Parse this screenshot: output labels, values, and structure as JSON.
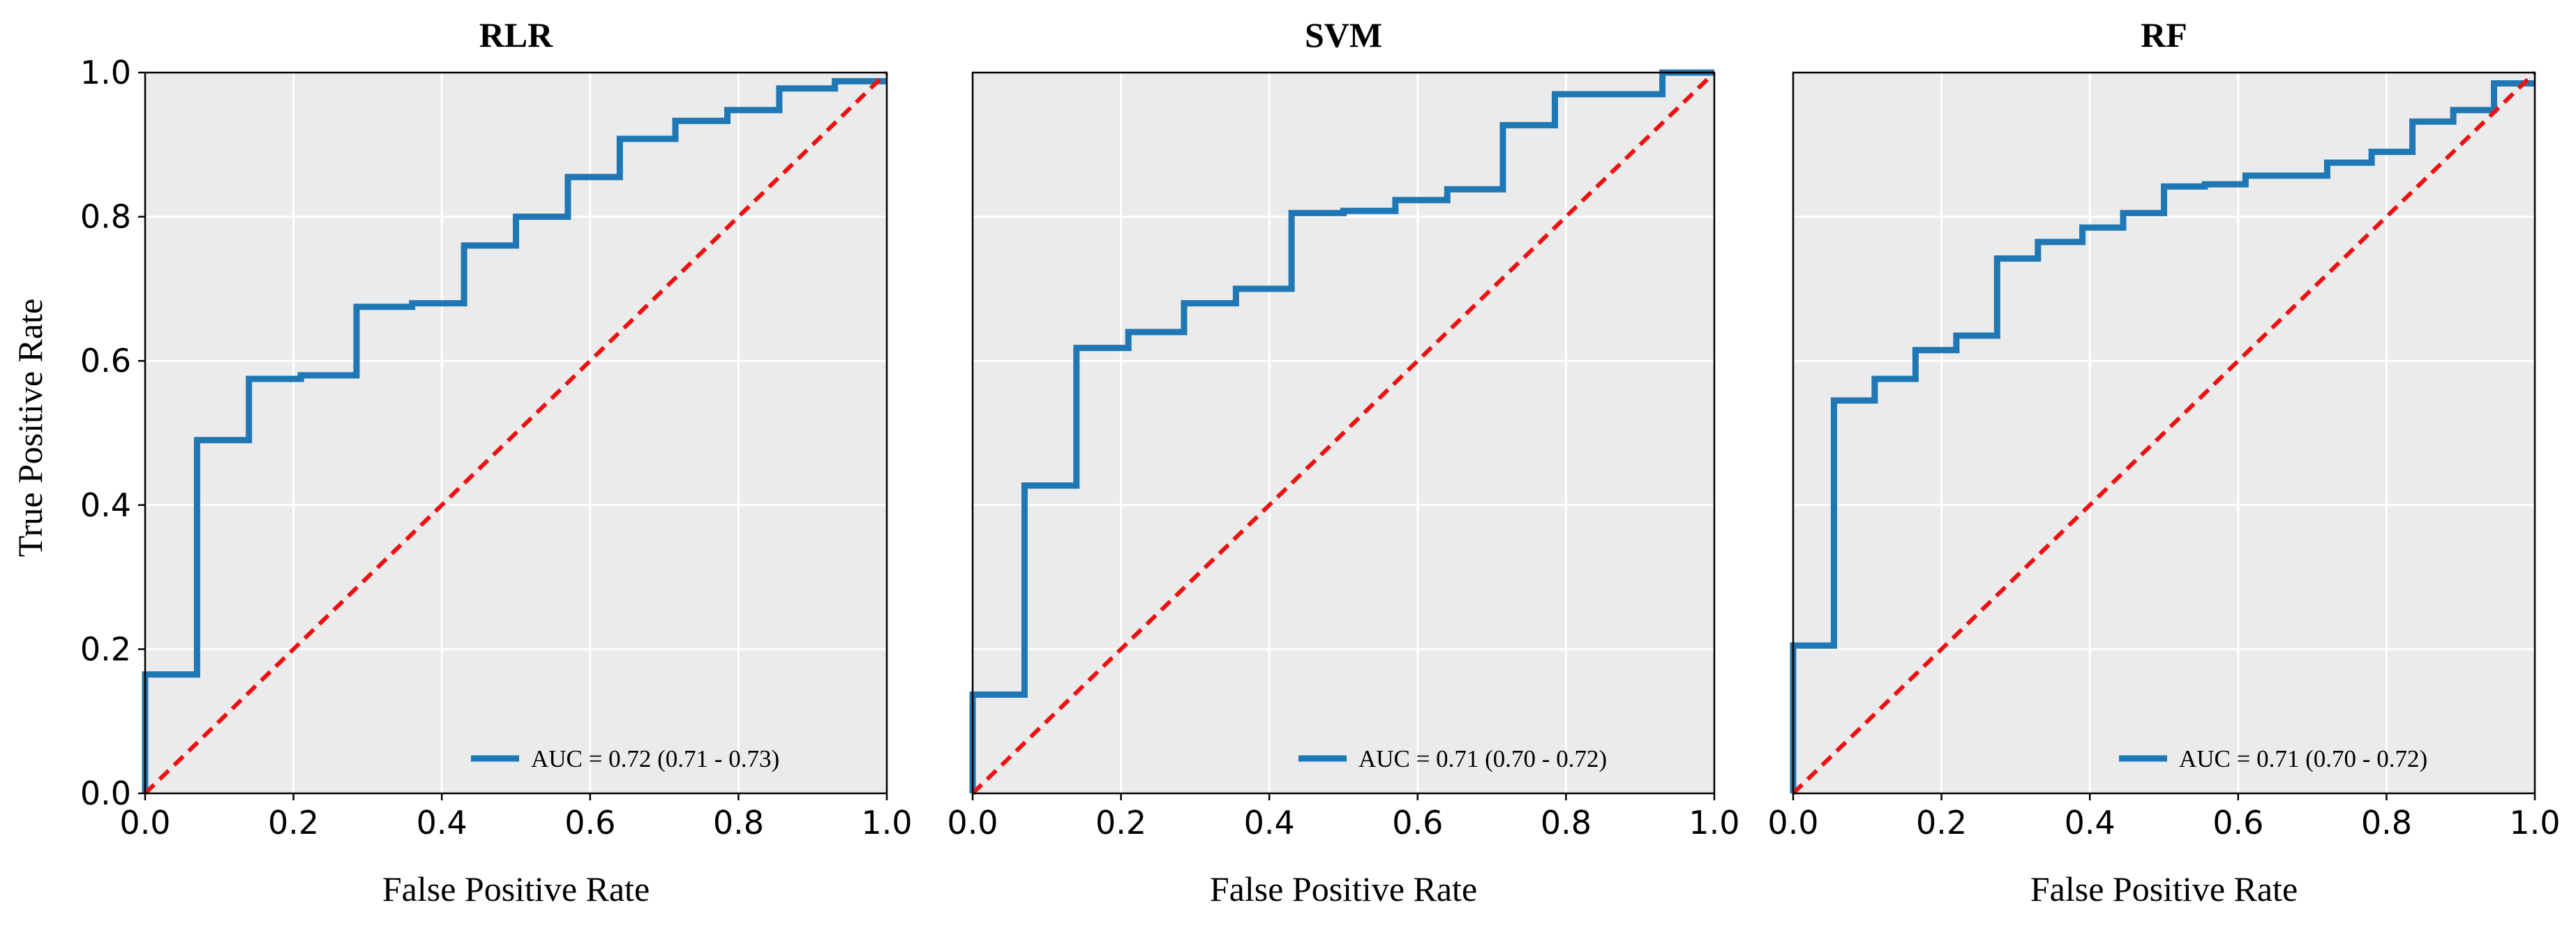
{
  "ylabel": "True Positive Rate",
  "chart_data": [
    {
      "type": "line",
      "title": "RLR",
      "xlabel": "False Positive Rate",
      "ylabel": "True Positive Rate",
      "xlim": [
        0.0,
        1.0
      ],
      "ylim": [
        0.0,
        1.0
      ],
      "xticks": [
        "0.0",
        "0.2",
        "0.4",
        "0.6",
        "0.8",
        "1.0"
      ],
      "yticks": [
        "0.0",
        "0.2",
        "0.4",
        "0.6",
        "0.8",
        "1.0"
      ],
      "grid": true,
      "legend_position": "lower-right",
      "series": [
        {
          "name": "AUC = 0.72 (0.71 - 0.73)",
          "color": "#1f77b4",
          "x": [
            0.0,
            0.0,
            0.07,
            0.07,
            0.14,
            0.14,
            0.21,
            0.21,
            0.285,
            0.285,
            0.36,
            0.36,
            0.43,
            0.43,
            0.5,
            0.5,
            0.57,
            0.57,
            0.64,
            0.64,
            0.715,
            0.715,
            0.785,
            0.785,
            0.855,
            0.855,
            0.93,
            0.93,
            1.0
          ],
          "y": [
            0.0,
            0.165,
            0.165,
            0.49,
            0.49,
            0.575,
            0.575,
            0.58,
            0.58,
            0.675,
            0.675,
            0.68,
            0.68,
            0.76,
            0.76,
            0.8,
            0.8,
            0.855,
            0.855,
            0.908,
            0.908,
            0.933,
            0.933,
            0.948,
            0.948,
            0.978,
            0.978,
            0.988,
            0.988
          ]
        },
        {
          "name": "",
          "color": "#ee1111",
          "style": "dashed",
          "x": [
            0.0,
            1.0
          ],
          "y": [
            0.0,
            1.0
          ]
        }
      ]
    },
    {
      "type": "line",
      "title": "SVM",
      "xlabel": "False Positive Rate",
      "xlim": [
        0.0,
        1.0
      ],
      "ylim": [
        0.0,
        1.0
      ],
      "xticks": [
        "0.0",
        "0.2",
        "0.4",
        "0.6",
        "0.8",
        "1.0"
      ],
      "grid": true,
      "legend_position": "lower-right",
      "series": [
        {
          "name": "AUC = 0.71 (0.70 - 0.72)",
          "color": "#1f77b4",
          "x": [
            0.0,
            0.0,
            0.07,
            0.07,
            0.14,
            0.14,
            0.21,
            0.21,
            0.285,
            0.285,
            0.355,
            0.355,
            0.43,
            0.43,
            0.5,
            0.5,
            0.57,
            0.57,
            0.64,
            0.64,
            0.715,
            0.715,
            0.785,
            0.785,
            0.93,
            0.93,
            1.0
          ],
          "y": [
            0.0,
            0.137,
            0.137,
            0.427,
            0.427,
            0.618,
            0.618,
            0.64,
            0.64,
            0.68,
            0.68,
            0.7,
            0.7,
            0.805,
            0.805,
            0.808,
            0.808,
            0.823,
            0.823,
            0.838,
            0.838,
            0.927,
            0.927,
            0.97,
            0.97,
            1.0,
            1.0
          ]
        },
        {
          "name": "",
          "color": "#ee1111",
          "style": "dashed",
          "x": [
            0.0,
            1.0
          ],
          "y": [
            0.0,
            1.0
          ]
        }
      ]
    },
    {
      "type": "line",
      "title": "RF",
      "xlabel": "False Positive Rate",
      "xlim": [
        0.0,
        1.0
      ],
      "ylim": [
        0.0,
        1.0
      ],
      "xticks": [
        "0.0",
        "0.2",
        "0.4",
        "0.6",
        "0.8",
        "1.0"
      ],
      "grid": true,
      "legend_position": "lower-right",
      "series": [
        {
          "name": "AUC = 0.71 (0.70 - 0.72)",
          "color": "#1f77b4",
          "x": [
            0.0,
            0.0,
            0.055,
            0.055,
            0.11,
            0.11,
            0.165,
            0.165,
            0.22,
            0.22,
            0.275,
            0.275,
            0.33,
            0.33,
            0.39,
            0.39,
            0.445,
            0.445,
            0.5,
            0.5,
            0.555,
            0.555,
            0.61,
            0.61,
            0.72,
            0.72,
            0.78,
            0.78,
            0.835,
            0.835,
            0.89,
            0.89,
            0.945,
            0.945,
            1.0
          ],
          "y": [
            0.0,
            0.205,
            0.205,
            0.545,
            0.545,
            0.575,
            0.575,
            0.615,
            0.615,
            0.635,
            0.635,
            0.742,
            0.742,
            0.765,
            0.765,
            0.785,
            0.785,
            0.805,
            0.805,
            0.842,
            0.842,
            0.845,
            0.845,
            0.857,
            0.857,
            0.875,
            0.875,
            0.89,
            0.89,
            0.932,
            0.932,
            0.948,
            0.948,
            0.985,
            0.985
          ]
        },
        {
          "name": "",
          "color": "#ee1111",
          "style": "dashed",
          "x": [
            0.0,
            1.0
          ],
          "y": [
            0.0,
            1.0
          ]
        }
      ]
    }
  ]
}
